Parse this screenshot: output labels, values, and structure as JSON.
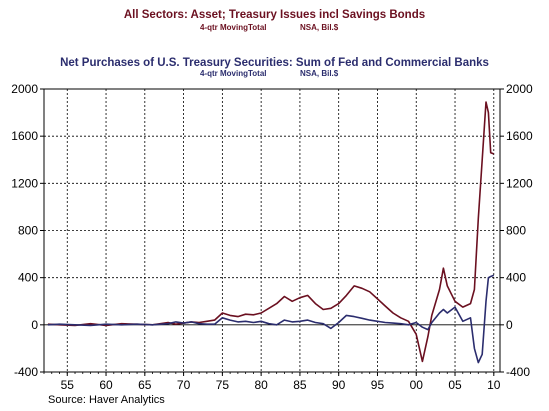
{
  "chart_data": {
    "type": "line",
    "title_1": "All Sectors: Asset; Treasury Issues incl Savings Bonds",
    "subtitle_1_left": "4-qtr MovingTotal",
    "subtitle_1_right": "NSA, Bil.$",
    "title_2": "Net Purchases of U.S. Treasury Securities: Sum of Fed and Commercial Banks",
    "subtitle_2_left": "4-qtr MovingTotal",
    "subtitle_2_right": "NSA, Bil.$",
    "source": "Source: Haver Analytics",
    "colors": {
      "series_1": "#6b1020",
      "series_2": "#2b2d6e",
      "title_1": "#6b1020",
      "title_2": "#2b2d6e",
      "grid": "#000000"
    },
    "xlim": [
      1952.0,
      2010.8
    ],
    "ylim": [
      -400,
      2000
    ],
    "x_ticks": [
      1955,
      1960,
      1965,
      1970,
      1975,
      1980,
      1985,
      1990,
      1995,
      2000,
      2005,
      2010
    ],
    "x_tick_labels": [
      "55",
      "60",
      "65",
      "70",
      "75",
      "80",
      "85",
      "90",
      "95",
      "00",
      "05",
      "10"
    ],
    "y_ticks": [
      -400,
      0,
      400,
      800,
      1200,
      1600,
      2000
    ],
    "y_tick_labels": [
      "-400",
      "0",
      "400",
      "800",
      "1200",
      "1600",
      "2000"
    ],
    "grid": true,
    "series": [
      {
        "x": [
          1952.5,
          1954,
          1956,
          1958,
          1960,
          1962,
          1964,
          1966,
          1968,
          1969,
          1970,
          1971,
          1972,
          1973,
          1974,
          1975,
          1976,
          1977,
          1978,
          1979,
          1980,
          1981,
          1982,
          1983,
          1984,
          1985,
          1986,
          1987,
          1988,
          1989,
          1990,
          1991,
          1992,
          1993,
          1994,
          1995,
          1996,
          1997,
          1998,
          1999,
          2000,
          2000.8,
          2001.5,
          2002,
          2003,
          2003.5,
          2004,
          2005,
          2006,
          2007,
          2007.5,
          2008,
          2008.5,
          2009,
          2009.3,
          2009.6,
          2010
        ],
        "values": [
          5,
          0,
          -5,
          10,
          -5,
          10,
          5,
          0,
          20,
          5,
          15,
          25,
          20,
          30,
          40,
          100,
          80,
          70,
          90,
          85,
          100,
          140,
          180,
          240,
          200,
          230,
          250,
          180,
          130,
          140,
          180,
          250,
          330,
          310,
          280,
          220,
          160,
          100,
          60,
          30,
          -80,
          -310,
          -100,
          80,
          300,
          480,
          330,
          200,
          150,
          180,
          300,
          900,
          1400,
          1890,
          1800,
          1460,
          1450
        ]
      },
      {
        "x": [
          1952.5,
          1954,
          1956,
          1958,
          1960,
          1962,
          1964,
          1966,
          1968,
          1969,
          1970,
          1971,
          1972,
          1973,
          1974,
          1975,
          1976,
          1977,
          1978,
          1979,
          1980,
          1981,
          1982,
          1983,
          1984,
          1985,
          1986,
          1987,
          1988,
          1989,
          1990,
          1991,
          1992,
          1993,
          1994,
          1995,
          1996,
          1997,
          1998,
          1999,
          2000,
          2000.8,
          2001.5,
          2002,
          2003,
          2003.5,
          2004,
          2005,
          2006,
          2007,
          2007.5,
          2008,
          2008.5,
          2009,
          2009.3,
          2009.6,
          2010
        ],
        "values": [
          0,
          5,
          0,
          -5,
          5,
          0,
          5,
          0,
          10,
          25,
          15,
          25,
          10,
          5,
          5,
          60,
          40,
          25,
          30,
          20,
          30,
          10,
          0,
          40,
          25,
          30,
          40,
          20,
          10,
          -30,
          20,
          80,
          70,
          55,
          40,
          30,
          20,
          15,
          10,
          0,
          20,
          -20,
          -40,
          20,
          100,
          130,
          100,
          150,
          30,
          60,
          -200,
          -320,
          -250,
          200,
          400,
          410,
          420
        ]
      }
    ]
  }
}
